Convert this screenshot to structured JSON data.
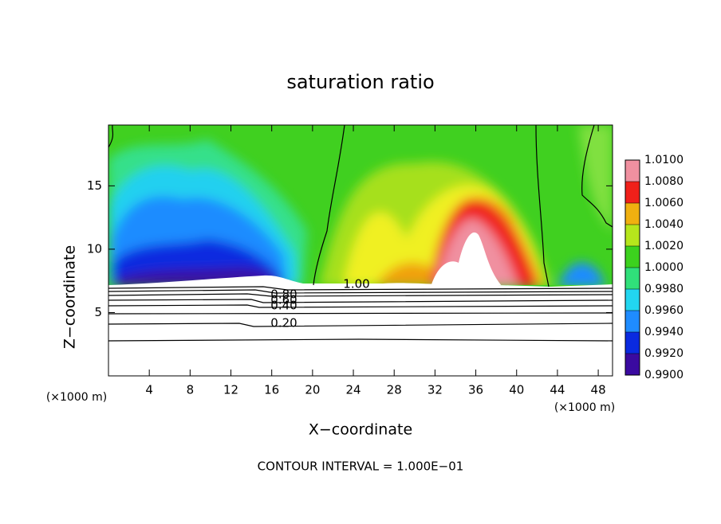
{
  "chart_data": {
    "type": "contour",
    "title": "saturation ratio",
    "x_label": "X−coordinate",
    "y_label": "Z−coordinate",
    "x_unit": "(×1000 m)",
    "y_unit": "(×1000 m)",
    "footer": "CONTOUR INTERVAL = 1.000E−01",
    "xlim": [
      0,
      49.4
    ],
    "ylim": [
      0,
      19.8
    ],
    "xticks": [
      4,
      8,
      12,
      16,
      20,
      24,
      28,
      32,
      36,
      40,
      44,
      48
    ],
    "yticks": [
      5,
      10,
      15
    ],
    "contour_labels": [
      {
        "value": 0.2,
        "label": "0.20"
      },
      {
        "value": 0.4,
        "label": "0.40"
      },
      {
        "value": 0.6,
        "label": "0.60"
      },
      {
        "value": 0.8,
        "label": "0.80"
      },
      {
        "value": 1,
        "label": "1.00"
      }
    ],
    "colorbar": {
      "levels": [
        {
          "value": 0.99,
          "label": "0.9900"
        },
        {
          "value": 0.992,
          "label": "0.9920"
        },
        {
          "value": 0.994,
          "label": "0.9940"
        },
        {
          "value": 0.996,
          "label": "0.9960"
        },
        {
          "value": 0.998,
          "label": "0.9980"
        },
        {
          "value": 1,
          "label": "1.0000"
        },
        {
          "value": 1.002,
          "label": "1.0020"
        },
        {
          "value": 1.004,
          "label": "1.0040"
        },
        {
          "value": 1.006,
          "label": "1.0060"
        },
        {
          "value": 1.008,
          "label": "1.0080"
        },
        {
          "value": 1.01,
          "label": "1.0100"
        }
      ],
      "colors": [
        "#3a0aa0",
        "#0a2ae0",
        "#1f8cff",
        "#22d6f0",
        "#30e07a",
        "#3cd21e",
        "#b6e61c",
        "#f0b010",
        "#f0201a",
        "#f090a0"
      ]
    }
  }
}
